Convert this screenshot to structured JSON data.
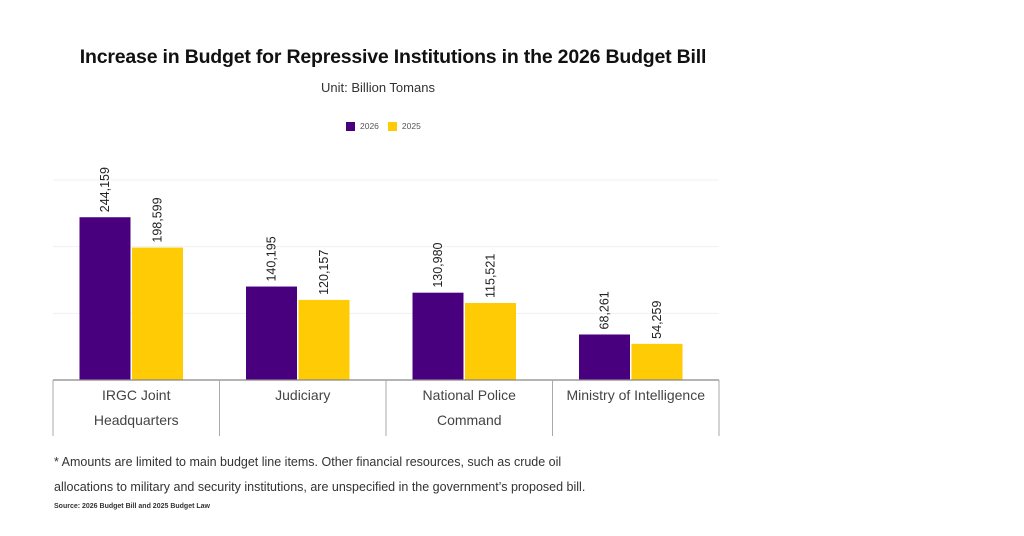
{
  "chart_data": {
    "type": "bar",
    "title": "Increase in Budget for Repressive Institutions in the 2026 Budget Bill",
    "subtitle": "Unit: Billion Tomans",
    "categories": [
      [
        "IRGC Joint",
        "Headquarters"
      ],
      [
        "Judiciary"
      ],
      [
        "National Police",
        "Command"
      ],
      [
        "Ministry of Intelligence"
      ]
    ],
    "series": [
      {
        "name": "2026",
        "color": "#48007f",
        "values": [
          244159,
          140195,
          130980,
          68261
        ],
        "labels": [
          "244,159",
          "140,195",
          "130,980",
          "68,261"
        ]
      },
      {
        "name": "2025",
        "color": "#ffcb05",
        "values": [
          198599,
          120157,
          115521,
          54259
        ],
        "labels": [
          "198,599",
          "120,157",
          "115,521",
          "54,259"
        ]
      }
    ],
    "xlabel": "",
    "ylabel": "",
    "ylim": [
      0,
      300000
    ],
    "gridlines": [
      100000,
      200000,
      300000
    ],
    "grid": true,
    "y_tick_labels_visible": false,
    "legend": "top-center"
  },
  "footnote": {
    "line1": "* Amounts are limited to main budget line items. Other financial resources, such as crude oil",
    "line2": "allocations to military and security institutions, are unspecified in the government’s proposed bill."
  },
  "source": "Source: 2026 Budget Bill and 2025 Budget Law"
}
